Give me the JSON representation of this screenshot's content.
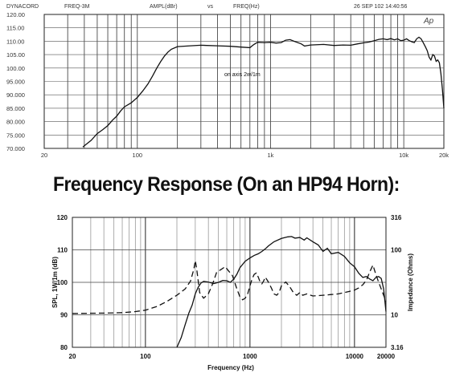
{
  "heading": "Frequency Response (On an HP94 Horn):",
  "chart_data": [
    {
      "type": "line",
      "header": {
        "brand": "DYNACORD",
        "sweep": "FREQ-3M",
        "yparam": "AMPL(dBr)",
        "vs": "vs",
        "xparam": "FREQ(Hz)",
        "date": "26 SEP 102 14:40:56",
        "logo": "Ap"
      },
      "annotation": "on axis 2w/1m",
      "xscale": "log",
      "xlim": [
        20,
        20000
      ],
      "ylim": [
        70,
        120
      ],
      "x_ticks": [
        {
          "value": 20,
          "label": "20"
        },
        {
          "value": 100,
          "label": "100"
        },
        {
          "value": 1000,
          "label": "1k"
        },
        {
          "value": 10000,
          "label": "10k"
        },
        {
          "value": 20000,
          "label": "20k"
        }
      ],
      "y_ticks": [
        {
          "value": 70,
          "label": "70.000"
        },
        {
          "value": 75,
          "label": "75.000"
        },
        {
          "value": 80,
          "label": "80.000"
        },
        {
          "value": 85,
          "label": "85.000"
        },
        {
          "value": 90,
          "label": "90.000"
        },
        {
          "value": 95,
          "label": "95.000"
        },
        {
          "value": 100,
          "label": "100.00"
        },
        {
          "value": 105,
          "label": "105.00"
        },
        {
          "value": 110,
          "label": "110.00"
        },
        {
          "value": 115,
          "label": "115.00"
        },
        {
          "value": 120,
          "label": "120.00"
        }
      ],
      "grid": true,
      "series": [
        {
          "style": "solid",
          "points": [
            [
              39,
              70.5
            ],
            [
              45,
              73
            ],
            [
              50,
              75.5
            ],
            [
              55,
              77
            ],
            [
              60,
              78.5
            ],
            [
              65,
              80.5
            ],
            [
              70,
              82
            ],
            [
              75,
              84
            ],
            [
              80,
              85.5
            ],
            [
              90,
              87
            ],
            [
              100,
              89
            ],
            [
              110,
              91.5
            ],
            [
              120,
              94
            ],
            [
              130,
              97
            ],
            [
              140,
              100
            ],
            [
              150,
              102.5
            ],
            [
              160,
              104.5
            ],
            [
              170,
              106
            ],
            [
              180,
              107
            ],
            [
              200,
              108
            ],
            [
              250,
              108.3
            ],
            [
              300,
              108.5
            ],
            [
              400,
              108.3
            ],
            [
              500,
              108.1
            ],
            [
              600,
              107.8
            ],
            [
              700,
              107.6
            ],
            [
              750,
              108.8
            ],
            [
              800,
              109.6
            ],
            [
              900,
              109.5
            ],
            [
              1000,
              109.6
            ],
            [
              1100,
              109.3
            ],
            [
              1200,
              109.5
            ],
            [
              1300,
              110.4
            ],
            [
              1400,
              110.6
            ],
            [
              1500,
              110
            ],
            [
              1700,
              109
            ],
            [
              1800,
              108.2
            ],
            [
              2000,
              108.6
            ],
            [
              2500,
              108.8
            ],
            [
              3000,
              108.4
            ],
            [
              3500,
              108.6
            ],
            [
              4000,
              108.5
            ],
            [
              4500,
              109
            ],
            [
              5000,
              109.4
            ],
            [
              5500,
              109.7
            ],
            [
              6000,
              110.2
            ],
            [
              6500,
              110.7
            ],
            [
              7000,
              110.9
            ],
            [
              7500,
              110.6
            ],
            [
              8000,
              111
            ],
            [
              8500,
              110.5
            ],
            [
              9000,
              110.9
            ],
            [
              9500,
              110.2
            ],
            [
              10000,
              110.4
            ],
            [
              10500,
              110.9
            ],
            [
              11000,
              110.2
            ],
            [
              11500,
              109.8
            ],
            [
              12000,
              109.5
            ],
            [
              12500,
              110.9
            ],
            [
              13000,
              111.5
            ],
            [
              13500,
              110.9
            ],
            [
              14000,
              109.5
            ],
            [
              14500,
              108
            ],
            [
              15000,
              106.5
            ],
            [
              15500,
              104
            ],
            [
              16000,
              103
            ],
            [
              16500,
              105
            ],
            [
              17000,
              104.5
            ],
            [
              17500,
              102.5
            ],
            [
              18000,
              103
            ],
            [
              18500,
              102
            ],
            [
              19000,
              98
            ],
            [
              19500,
              92
            ],
            [
              20000,
              85
            ]
          ]
        }
      ]
    },
    {
      "type": "line",
      "xlabel": "Frequency (Hz)",
      "ylabel": "SPL, 1W/1m (dB)",
      "y2label": "Impedance (Ohms)",
      "xscale": "log",
      "xlim": [
        20,
        20000
      ],
      "ylim": [
        80,
        120
      ],
      "y2scale": "log",
      "y2lim": [
        3.16,
        316
      ],
      "x_ticks": [
        {
          "value": 20,
          "label": "20"
        },
        {
          "value": 100,
          "label": "100"
        },
        {
          "value": 1000,
          "label": "1000"
        },
        {
          "value": 10000,
          "label": "10000"
        },
        {
          "value": 20000,
          "label": "20000"
        }
      ],
      "y_ticks": [
        {
          "value": 80,
          "label": "80"
        },
        {
          "value": 90,
          "label": "90"
        },
        {
          "value": 100,
          "label": "100"
        },
        {
          "value": 110,
          "label": "110"
        },
        {
          "value": 120,
          "label": "120"
        }
      ],
      "y2_ticks": [
        {
          "value": 3.16,
          "label": "3.16"
        },
        {
          "value": 10,
          "label": "10"
        },
        {
          "value": 100,
          "label": "100"
        },
        {
          "value": 316,
          "label": "316"
        }
      ],
      "grid": true,
      "series": [
        {
          "style": "solid",
          "axis": "left",
          "points": [
            [
              200,
              80
            ],
            [
              220,
              83
            ],
            [
              240,
              87
            ],
            [
              260,
              90.5
            ],
            [
              280,
              93
            ],
            [
              300,
              96.5
            ],
            [
              320,
              98.5
            ],
            [
              340,
              99.8
            ],
            [
              360,
              100.3
            ],
            [
              400,
              100.1
            ],
            [
              450,
              99.6
            ],
            [
              500,
              100
            ],
            [
              550,
              100.6
            ],
            [
              600,
              100.5
            ],
            [
              650,
              100
            ],
            [
              700,
              101
            ],
            [
              750,
              102.5
            ],
            [
              800,
              104.5
            ],
            [
              900,
              106.5
            ],
            [
              1000,
              107.5
            ],
            [
              1100,
              108.3
            ],
            [
              1200,
              108.8
            ],
            [
              1300,
              109.5
            ],
            [
              1400,
              110.3
            ],
            [
              1500,
              111.2
            ],
            [
              1700,
              112.5
            ],
            [
              2000,
              113.5
            ],
            [
              2300,
              114
            ],
            [
              2500,
              114.1
            ],
            [
              2700,
              113.6
            ],
            [
              3000,
              113.8
            ],
            [
              3300,
              113
            ],
            [
              3500,
              113.7
            ],
            [
              4000,
              112.5
            ],
            [
              4500,
              111.5
            ],
            [
              5000,
              109.5
            ],
            [
              5500,
              110.5
            ],
            [
              6000,
              108.8
            ],
            [
              7000,
              109.2
            ],
            [
              8000,
              108
            ],
            [
              9000,
              106
            ],
            [
              10000,
              104.8
            ],
            [
              11000,
              102.8
            ],
            [
              12000,
              101.5
            ],
            [
              13000,
              101.8
            ],
            [
              14000,
              101
            ],
            [
              15000,
              100.5
            ],
            [
              16000,
              101.5
            ],
            [
              17000,
              101.8
            ],
            [
              18000,
              101.2
            ],
            [
              19000,
              98
            ],
            [
              20000,
              91
            ]
          ]
        },
        {
          "style": "dashed",
          "axis": "right",
          "points": [
            [
              20,
              10.5
            ],
            [
              40,
              10.6
            ],
            [
              60,
              10.8
            ],
            [
              80,
              11.2
            ],
            [
              100,
              11.8
            ],
            [
              130,
              13.5
            ],
            [
              160,
              16
            ],
            [
              200,
              20
            ],
            [
              240,
              25
            ],
            [
              270,
              33
            ],
            [
              290,
              50
            ],
            [
              300,
              68
            ],
            [
              310,
              50
            ],
            [
              330,
              22
            ],
            [
              360,
              18
            ],
            [
              400,
              21
            ],
            [
              440,
              30
            ],
            [
              480,
              45
            ],
            [
              530,
              50
            ],
            [
              580,
              55
            ],
            [
              620,
              48
            ],
            [
              680,
              40
            ],
            [
              750,
              25
            ],
            [
              800,
              19
            ],
            [
              850,
              17
            ],
            [
              900,
              18
            ],
            [
              950,
              21
            ],
            [
              1000,
              28
            ],
            [
              1050,
              36
            ],
            [
              1100,
              42
            ],
            [
              1150,
              44
            ],
            [
              1200,
              38
            ],
            [
              1250,
              32
            ],
            [
              1300,
              30
            ],
            [
              1350,
              33
            ],
            [
              1400,
              38
            ],
            [
              1500,
              32
            ],
            [
              1600,
              26
            ],
            [
              1700,
              21
            ],
            [
              1800,
              20
            ],
            [
              1900,
              22
            ],
            [
              2000,
              28
            ],
            [
              2200,
              32
            ],
            [
              2400,
              27
            ],
            [
              2600,
              22
            ],
            [
              2800,
              20
            ],
            [
              3000,
              22
            ],
            [
              3200,
              20
            ],
            [
              3500,
              21
            ],
            [
              4000,
              19.5
            ],
            [
              5000,
              20
            ],
            [
              6000,
              20.5
            ],
            [
              7000,
              21
            ],
            [
              8000,
              22
            ],
            [
              9000,
              23
            ],
            [
              10000,
              24
            ],
            [
              11000,
              26
            ],
            [
              12000,
              29
            ],
            [
              13000,
              34
            ],
            [
              14000,
              46
            ],
            [
              15000,
              58
            ],
            [
              16000,
              42
            ],
            [
              17000,
              32
            ],
            [
              18000,
              25
            ],
            [
              19000,
              20
            ],
            [
              20000,
              16
            ]
          ]
        }
      ]
    }
  ]
}
